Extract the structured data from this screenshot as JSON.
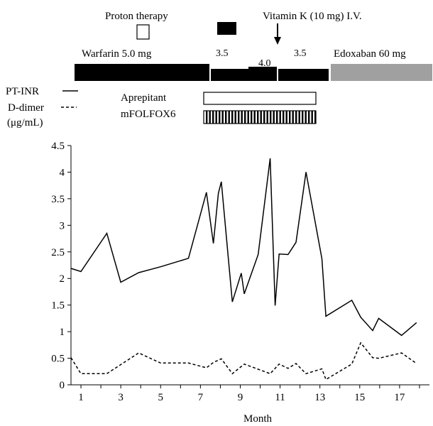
{
  "annotations": {
    "proton": "Proton therapy",
    "vitk": "Vitamin K (10 mg) I.V.",
    "warfarin": "Warfarin 5.0 mg",
    "dose_3_5_a": "3.5",
    "dose_4_0": "4.0",
    "dose_3_5_b": "3.5",
    "edoxaban": "Edoxaban 60 mg",
    "aprepitant": "Aprepitant",
    "mfolfox": "mFOLFOX6"
  },
  "legend": {
    "ptinr": "PT-INR",
    "ddimer": "D-dimer",
    "ddimer_unit": "(μg/mL)"
  },
  "colors": {
    "warfarin_bar": "#000000",
    "edoxaban_bar": "#a0a0a0",
    "aprepitant_bar": "#ffffff"
  },
  "chart_data": {
    "type": "line",
    "title": "",
    "xlabel": "Month",
    "ylabel": "",
    "xlim": [
      0.5,
      18.5
    ],
    "ylim": [
      0,
      4.5
    ],
    "xticks": [
      1,
      3,
      5,
      7,
      9,
      11,
      13,
      15,
      17
    ],
    "yticks": [
      0,
      0.5,
      1,
      1.5,
      2,
      2.5,
      3,
      3.5,
      4,
      4.5
    ],
    "ytick_labels": [
      "0",
      "0.5",
      "1",
      "1.5",
      "2",
      "2.5",
      "3",
      "3.5",
      "4",
      "4.5"
    ],
    "grid": false,
    "series": [
      {
        "name": "PT-INR",
        "style": "solid",
        "x": [
          0.5,
          1.0,
          2.3,
          3.0,
          3.9,
          5.0,
          6.4,
          7.3,
          7.65,
          7.9,
          8.05,
          8.6,
          9.05,
          9.2,
          9.9,
          10.5,
          10.75,
          10.95,
          11.4,
          11.8,
          12.3,
          13.1,
          13.3,
          14.6,
          15.05,
          15.65,
          15.95,
          17.1,
          17.85
        ],
        "y": [
          2.19,
          2.13,
          2.85,
          1.93,
          2.11,
          2.22,
          2.38,
          3.62,
          2.66,
          3.6,
          3.82,
          1.56,
          2.1,
          1.71,
          2.45,
          4.26,
          1.49,
          2.46,
          2.45,
          2.68,
          4.0,
          2.37,
          1.29,
          1.59,
          1.27,
          1.02,
          1.25,
          0.93,
          1.17
        ]
      },
      {
        "name": "D-dimer",
        "style": "dashed",
        "x": [
          0.5,
          1.0,
          2.3,
          3.9,
          5.0,
          6.4,
          7.3,
          7.65,
          8.05,
          8.6,
          9.2,
          10.5,
          10.95,
          11.4,
          11.8,
          12.3,
          13.1,
          13.3,
          14.6,
          15.05,
          15.65,
          15.95,
          17.1,
          17.85
        ],
        "y": [
          0.51,
          0.21,
          0.21,
          0.6,
          0.41,
          0.41,
          0.32,
          0.42,
          0.49,
          0.21,
          0.39,
          0.21,
          0.39,
          0.31,
          0.4,
          0.21,
          0.3,
          0.1,
          0.39,
          0.79,
          0.51,
          0.5,
          0.6,
          0.4
        ]
      }
    ]
  }
}
